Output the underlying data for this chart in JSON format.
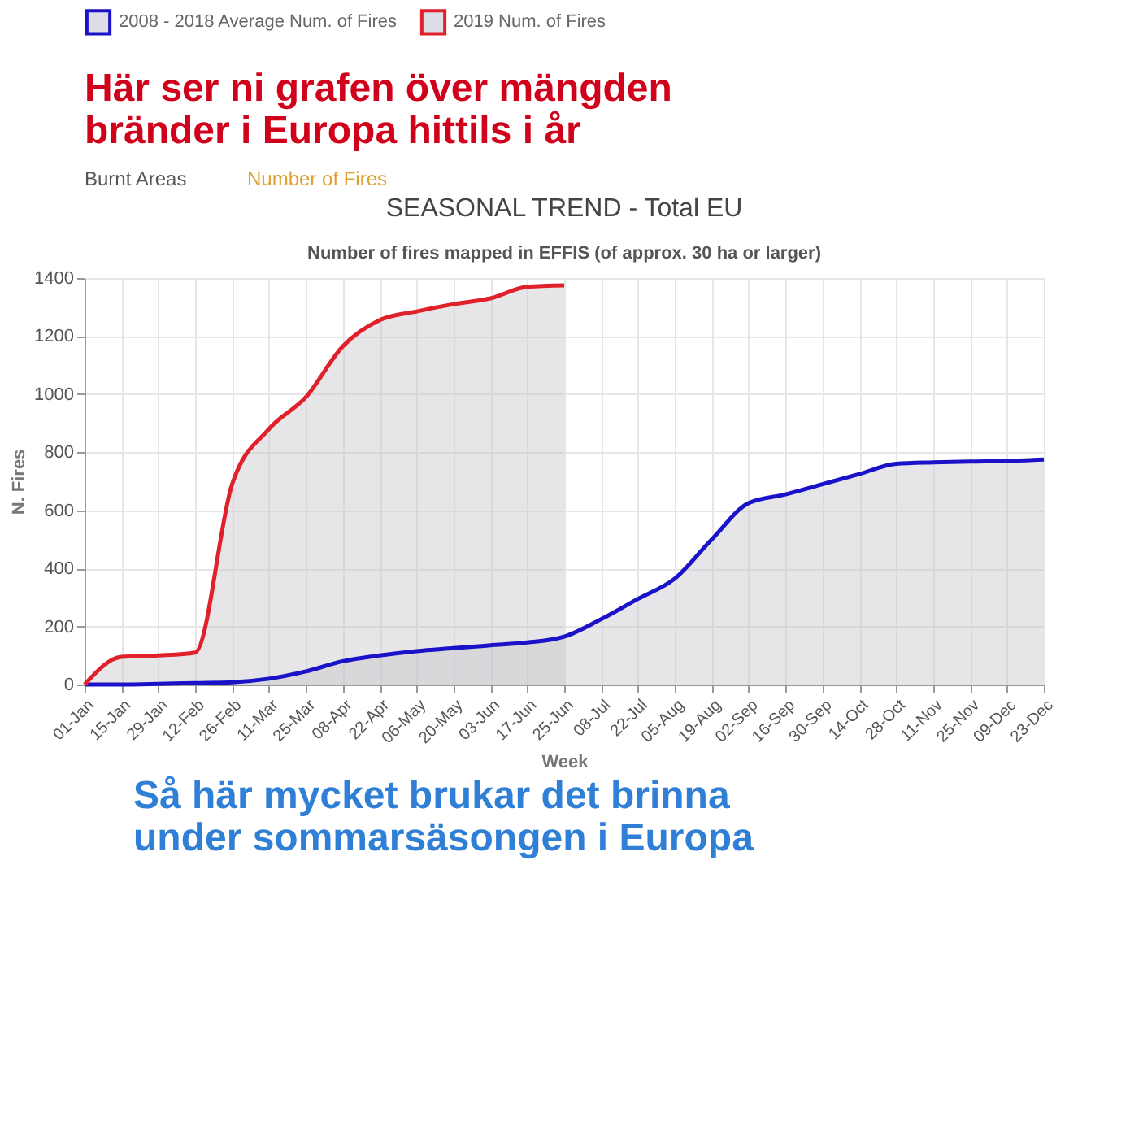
{
  "chart_data": {
    "type": "area",
    "title": "SEASONAL TREND - Total EU",
    "subtitle": "Number of fires mapped in EFFIS (of approx. 30 ha or larger)",
    "xlabel": "Week",
    "ylabel": "N. Fires",
    "annotations": [
      "Här ser ni grafen över mängden\nbränder  i Europa hittils i år",
      "Burnt Areas",
      "Number of Fires",
      "Så här mycket brukar det brinna\nunder sommarsäsongen i Europa"
    ],
    "categories": [
      "01-Jan",
      "15-Jan",
      "29-Jan",
      "12-Feb",
      "26-Feb",
      "11-Mar",
      "25-Mar",
      "08-Apr",
      "22-Apr",
      "06-May",
      "20-May",
      "03-Jun",
      "17-Jun",
      "25-Jun",
      "08-Jul",
      "22-Jul",
      "05-Aug",
      "19-Aug",
      "02-Sep",
      "16-Sep",
      "30-Sep",
      "14-Oct",
      "28-Oct",
      "11-Nov",
      "25-Nov",
      "09-Dec",
      "23-Dec"
    ],
    "series": [
      {
        "name": "2008 - 2018 Average Num. of Fires",
        "color": "#1a12c8",
        "values": [
          0,
          0,
          2,
          5,
          8,
          20,
          45,
          80,
          100,
          115,
          125,
          135,
          145,
          165,
          225,
          295,
          365,
          500,
          625,
          655,
          690,
          725,
          760,
          765,
          768,
          770,
          775
        ]
      },
      {
        "name": "2019 Num. of Fires",
        "color": "#e0202a",
        "values": [
          0,
          95,
          100,
          110,
          690,
          880,
          990,
          1165,
          1255,
          1285,
          1310,
          1330,
          1370,
          1375,
          null,
          null,
          null,
          null,
          null,
          null,
          null,
          null,
          null,
          null,
          null,
          null,
          null
        ]
      }
    ],
    "ylim": [
      0,
      1400
    ],
    "yticks": [
      0,
      200,
      400,
      600,
      800,
      1000,
      1200,
      1400
    ],
    "grid": true,
    "legend": "top"
  }
}
